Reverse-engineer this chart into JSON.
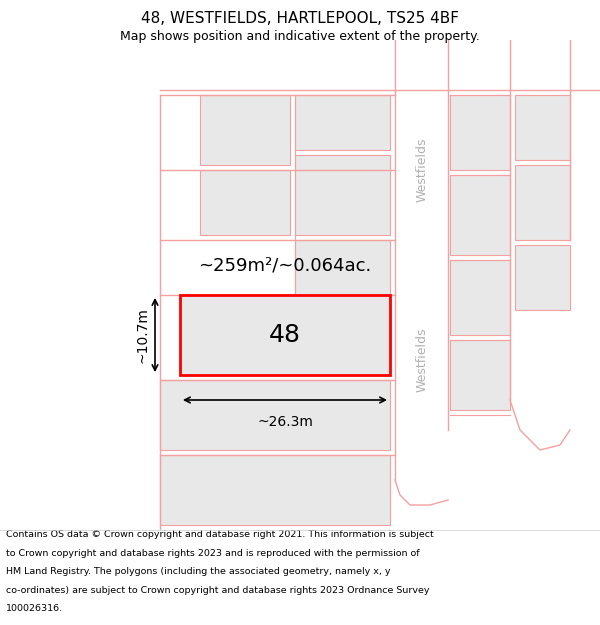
{
  "title": "48, WESTFIELDS, HARTLEPOOL, TS25 4BF",
  "subtitle": "Map shows position and indicative extent of the property.",
  "footer": "Contains OS data © Crown copyright and database right 2021. This information is subject to Crown copyright and database rights 2023 and is reproduced with the permission of HM Land Registry. The polygons (including the associated geometry, namely x, y co-ordinates) are subject to Crown copyright and database rights 2023 Ordnance Survey 100026316.",
  "bg_color": "#ffffff",
  "map_bg": "#ffffff",
  "road_color": "#f5a0a0",
  "plot_fill": "#e8e8e8",
  "highlight_fill": "#e8e8e8",
  "highlight_stroke": "#ff0000",
  "road_label_color": "#c0c0c0",
  "area_text": "~259m²/~0.064ac.",
  "plot_number": "48",
  "width_label": "~26.3m",
  "height_label": "~10.7m"
}
